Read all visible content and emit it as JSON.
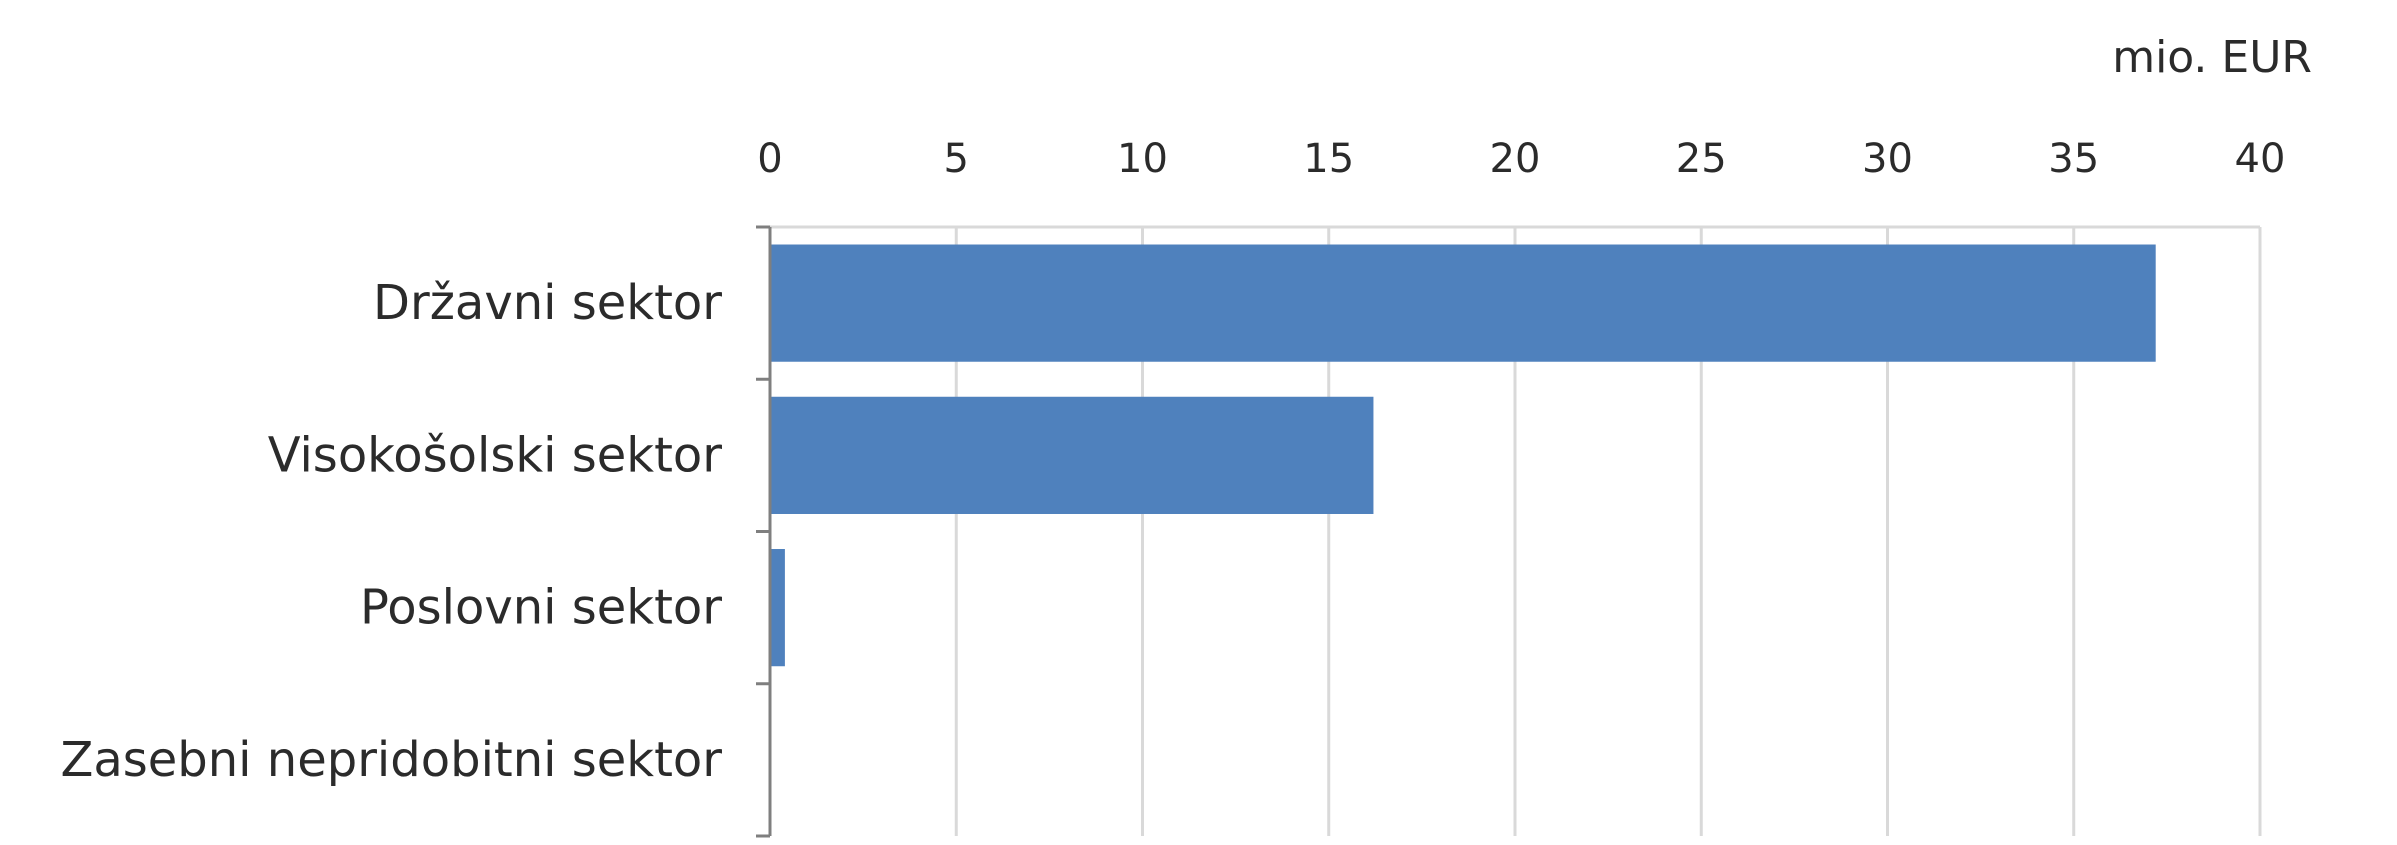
{
  "chart_data": {
    "type": "bar",
    "orientation": "horizontal",
    "categories": [
      "Državni sektor",
      "Visokošolski sektor",
      "Poslovni sektor",
      "Zasebni nepridobitni sektor"
    ],
    "values": [
      37.2,
      16.2,
      0.4,
      0
    ],
    "unit_label": "mio. EUR",
    "xlim": [
      0,
      40
    ],
    "xticks": [
      0,
      5,
      10,
      15,
      20,
      25,
      30,
      35,
      40
    ],
    "x_axis_position": "top",
    "grid": true,
    "bar_color": "#4f81bd",
    "title": "",
    "xlabel": "",
    "ylabel": ""
  }
}
